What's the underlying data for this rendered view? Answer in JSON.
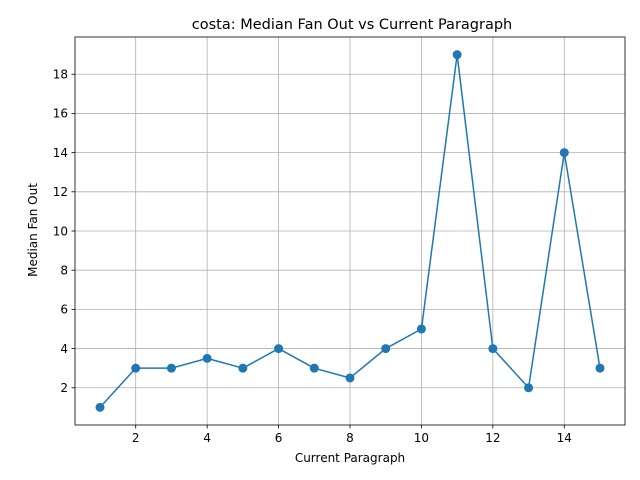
{
  "chart_data": {
    "type": "line",
    "title": "costa: Median Fan Out vs Current Paragraph",
    "xlabel": "Current Paragraph",
    "ylabel": "Median Fan Out",
    "xlim": [
      0.3,
      15.7
    ],
    "ylim": [
      0.1,
      19.9
    ],
    "xticks": [
      2,
      4,
      6,
      8,
      10,
      12,
      14
    ],
    "yticks": [
      2,
      4,
      6,
      8,
      10,
      12,
      14,
      16,
      18
    ],
    "grid": true,
    "series": [
      {
        "color": "#1f77b4",
        "marker": "circle",
        "x": [
          1,
          2,
          3,
          4,
          5,
          6,
          7,
          8,
          9,
          10,
          11,
          12,
          13,
          14,
          15
        ],
        "y": [
          1,
          3,
          3,
          3.5,
          3,
          4,
          3,
          2.5,
          4,
          5,
          19,
          4,
          2,
          14,
          3
        ]
      }
    ]
  }
}
